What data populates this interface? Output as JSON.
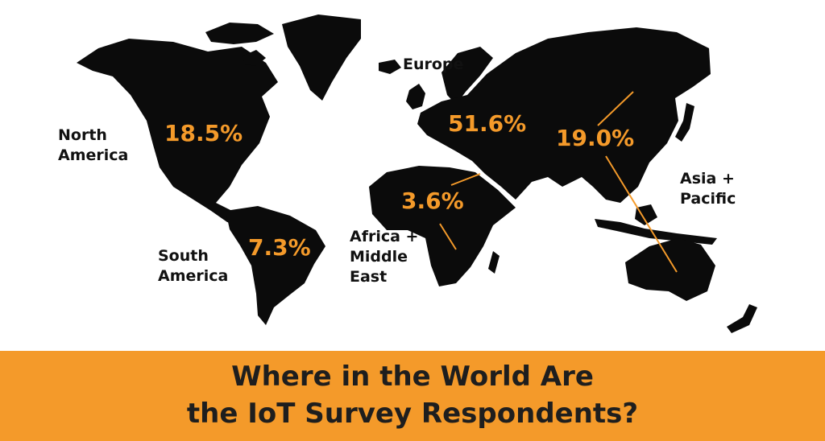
{
  "colors": {
    "land": "#0b0b0b",
    "accent": "#f49a2a",
    "text": "#111111",
    "banner": "#f49a2a"
  },
  "regions": {
    "north_america": {
      "name_lines": [
        "North",
        "America"
      ],
      "value": "18.5%"
    },
    "south_america": {
      "name_lines": [
        "South",
        "America"
      ],
      "value": "7.3%"
    },
    "europe": {
      "name_lines": [
        "Europe"
      ],
      "value": "51.6%"
    },
    "africa_middle_east": {
      "name_lines": [
        "Africa +",
        "Middle",
        "East"
      ],
      "value": "3.6%"
    },
    "asia_pacific": {
      "name_lines": [
        "Asia +",
        "Pacific"
      ],
      "value": "19.0%"
    }
  },
  "title": {
    "line1": "Where in the World Are",
    "line2": "the IoT Survey Respondents?"
  }
}
